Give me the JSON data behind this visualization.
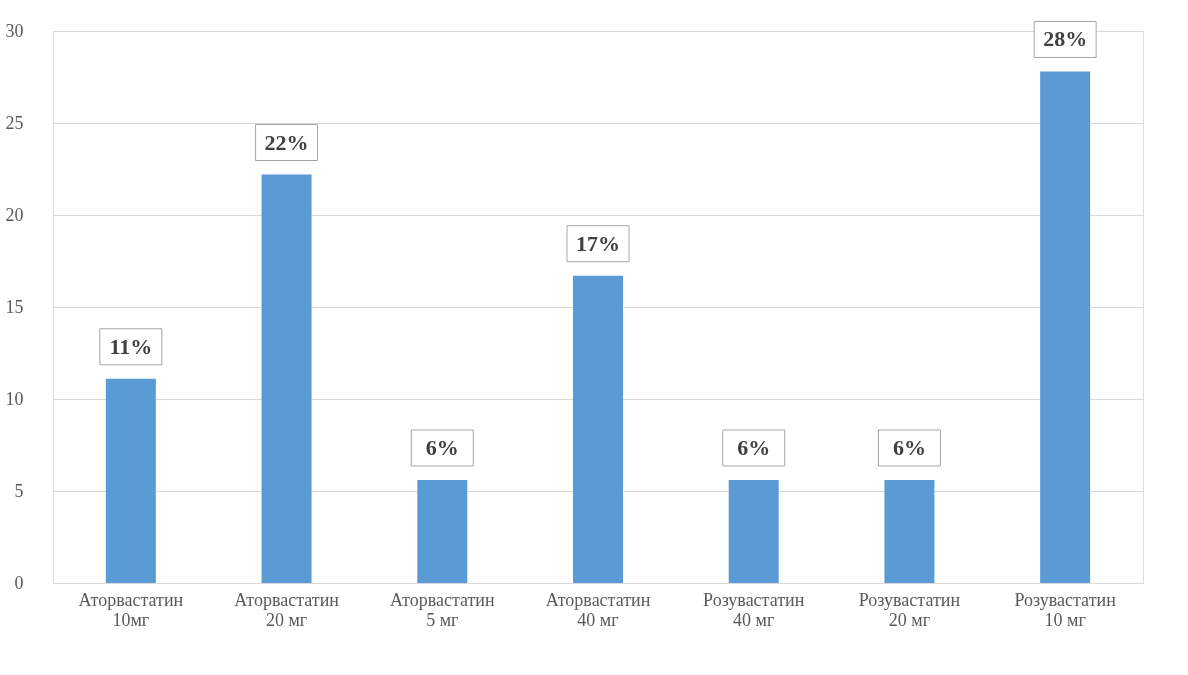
{
  "chart_data": {
    "type": "bar",
    "categories": [
      "Аторвастатин 10мг",
      "Аторвастатин 20 мг",
      "Аторвастатин 5 мг",
      "Аторвастатин 40 мг",
      "Розувастатин 40 мг",
      "Розувастатин 20 мг",
      "Розувастатин 10 мг"
    ],
    "values": [
      11.1,
      22.2,
      5.6,
      16.7,
      5.6,
      5.6,
      27.8
    ],
    "value_labels": [
      "11%",
      "22%",
      "6%",
      "17%",
      "6%",
      "6%",
      "28%"
    ],
    "color": "#5b9bd5",
    "ylim": [
      0,
      30
    ],
    "yticks": [
      0,
      5,
      10,
      15,
      20,
      25,
      30
    ],
    "grid": "y"
  }
}
